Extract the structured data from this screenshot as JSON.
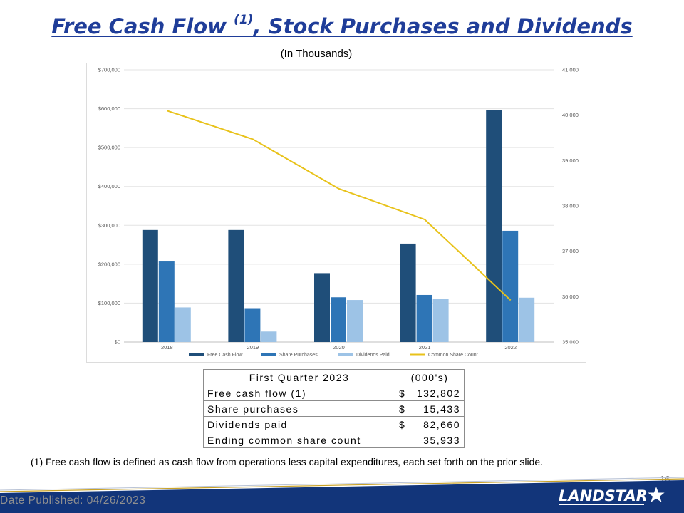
{
  "slide": {
    "title_main": "Free Cash Flow",
    "title_sup": "(1)",
    "title_rest": ", Stock Purchases and Dividends",
    "subtitle": "(In Thousands)",
    "footnote": "(1)  Free cash flow is defined as cash flow from operations less capital expenditures, each set forth on the prior slide.",
    "page_number": "16",
    "date_published": "Date Published:  04/26/2023",
    "logo_text": "LANDSTAR"
  },
  "colors": {
    "title": "#1f3d99",
    "free_cash_flow": "#1f4e79",
    "share_purchases": "#2e75b6",
    "dividends_paid": "#9dc3e6",
    "common_share_count": "#e8c21a",
    "band": "#12357a"
  },
  "chart_data": {
    "type": "bar",
    "categories": [
      "2018",
      "2019",
      "2020",
      "2021",
      "2022"
    ],
    "series": [
      {
        "name": "Free Cash Flow",
        "type": "bar",
        "axis": "left",
        "values": [
          288000,
          288000,
          177000,
          253000,
          597000
        ]
      },
      {
        "name": "Share Purchases",
        "type": "bar",
        "axis": "left",
        "values": [
          207000,
          87000,
          115000,
          121000,
          286000
        ]
      },
      {
        "name": "Dividends Paid",
        "type": "bar",
        "axis": "left",
        "values": [
          89000,
          27000,
          108000,
          111000,
          114000
        ]
      },
      {
        "name": "Common Share Count",
        "type": "line",
        "axis": "right",
        "values": [
          40100,
          39470,
          38380,
          37700,
          35920
        ]
      }
    ],
    "y_left": {
      "ylim": [
        0,
        700000
      ],
      "ticks": [
        0,
        100000,
        200000,
        300000,
        400000,
        500000,
        600000,
        700000
      ],
      "tick_labels": [
        "$0",
        "$100,000",
        "$200,000",
        "$300,000",
        "$400,000",
        "$500,000",
        "$600,000",
        "$700,000"
      ]
    },
    "y_right": {
      "ylim": [
        35000,
        41000
      ],
      "ticks": [
        35000,
        36000,
        37000,
        38000,
        39000,
        40000,
        41000
      ],
      "tick_labels": [
        "35,000",
        "36,000",
        "37,000",
        "38,000",
        "39,000",
        "40,000",
        "41,000"
      ]
    },
    "grid": true,
    "legend_position": "bottom",
    "legend": [
      "Free Cash Flow",
      "Share Purchases",
      "Dividends Paid",
      "Common Share Count"
    ]
  },
  "table": {
    "header": [
      "First Quarter 2023",
      "(000's)"
    ],
    "rows": [
      {
        "label": "Free cash flow (1)",
        "currency": "$",
        "value": "132,802"
      },
      {
        "label": "Share purchases",
        "currency": "$",
        "value": "15,433"
      },
      {
        "label": "Dividends paid",
        "currency": "$",
        "value": "82,660"
      },
      {
        "label": "Ending common share count",
        "currency": "",
        "value": "35,933"
      }
    ]
  }
}
